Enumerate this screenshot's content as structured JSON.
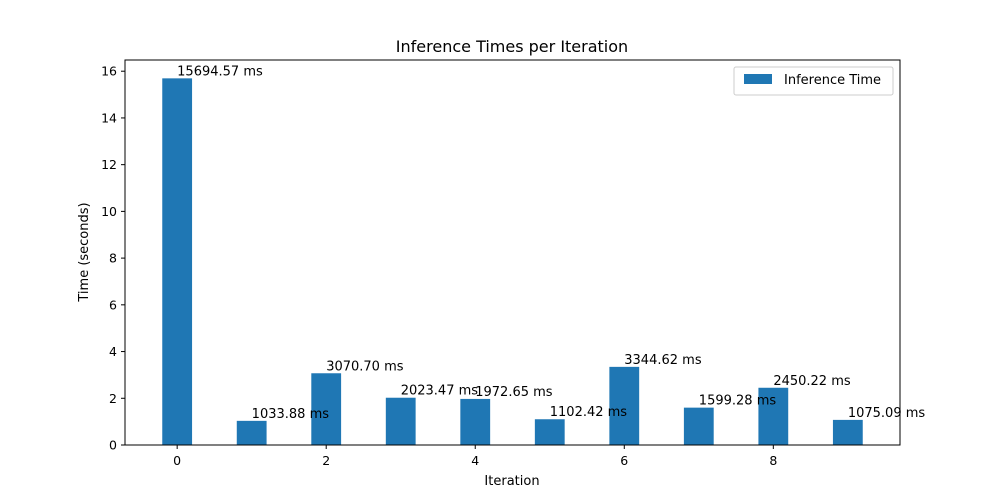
{
  "chart_data": {
    "type": "bar",
    "title": "Inference Times per Iteration",
    "xlabel": "Iteration",
    "ylabel": "Time (seconds)",
    "x": [
      0,
      1,
      2,
      3,
      4,
      5,
      6,
      7,
      8,
      9
    ],
    "series": [
      {
        "name": "Inference Time",
        "values": [
          15.69457,
          1.03388,
          3.0707,
          2.02347,
          1.97265,
          1.10242,
          3.34462,
          1.59928,
          2.45022,
          1.07509
        ],
        "color": "#1f77b4"
      }
    ],
    "data_labels": [
      "15694.57 ms",
      "1033.88 ms",
      "3070.70 ms",
      "2023.47 ms",
      "1972.65 ms",
      "1102.42 ms",
      "3344.62 ms",
      "1599.28 ms",
      "2450.22 ms",
      "1075.09 ms"
    ],
    "xticks": [
      0,
      2,
      4,
      6,
      8
    ],
    "yticks": [
      0,
      2,
      4,
      6,
      8,
      10,
      12,
      14,
      16
    ],
    "xlim": [
      -0.7,
      9.7
    ],
    "ylim": [
      0,
      16.48
    ],
    "legend_position": "top-right",
    "grid": false
  }
}
